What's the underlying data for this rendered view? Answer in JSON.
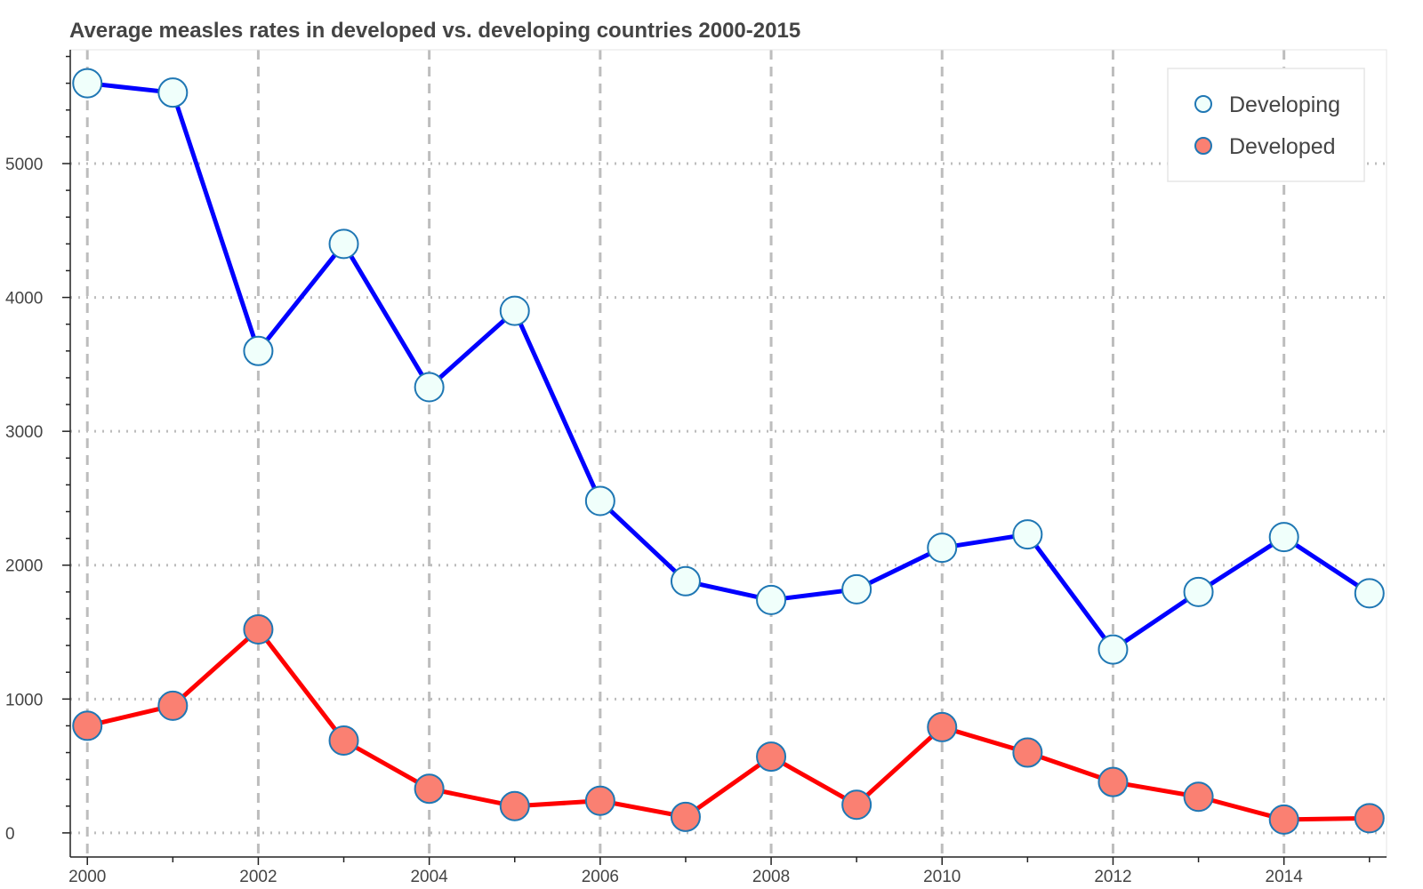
{
  "chart_data": {
    "type": "line",
    "title": "Average measles rates in developed vs. developing countries  2000-2015",
    "xlabel": "",
    "ylabel": "",
    "x": [
      2000,
      2001,
      2002,
      2003,
      2004,
      2005,
      2006,
      2007,
      2008,
      2009,
      2010,
      2011,
      2012,
      2013,
      2014,
      2015
    ],
    "xlim": [
      1999.8,
      2015.2
    ],
    "ylim": [
      -180,
      5850
    ],
    "x_ticks": [
      "2000",
      "2002",
      "2004",
      "2006",
      "2008",
      "2010",
      "2012",
      "2014"
    ],
    "y_ticks": [
      "0",
      "1000",
      "2000",
      "3000",
      "4000",
      "5000"
    ],
    "grid": true,
    "legend_position": "top-right",
    "series": [
      {
        "name": "Developing",
        "line_color": "#0000ff",
        "marker_fill": "#f0fffb",
        "marker_edge": "#1f77b4",
        "values": [
          5600,
          5530,
          3600,
          4400,
          3330,
          3900,
          2480,
          1880,
          1740,
          1820,
          2130,
          2230,
          1370,
          1800,
          2210,
          1790
        ]
      },
      {
        "name": "Developed",
        "line_color": "#ff0000",
        "marker_fill": "#fa8072",
        "marker_edge": "#1f77b4",
        "values": [
          800,
          950,
          1520,
          690,
          330,
          200,
          240,
          120,
          570,
          210,
          790,
          600,
          380,
          270,
          100,
          110
        ]
      }
    ]
  }
}
